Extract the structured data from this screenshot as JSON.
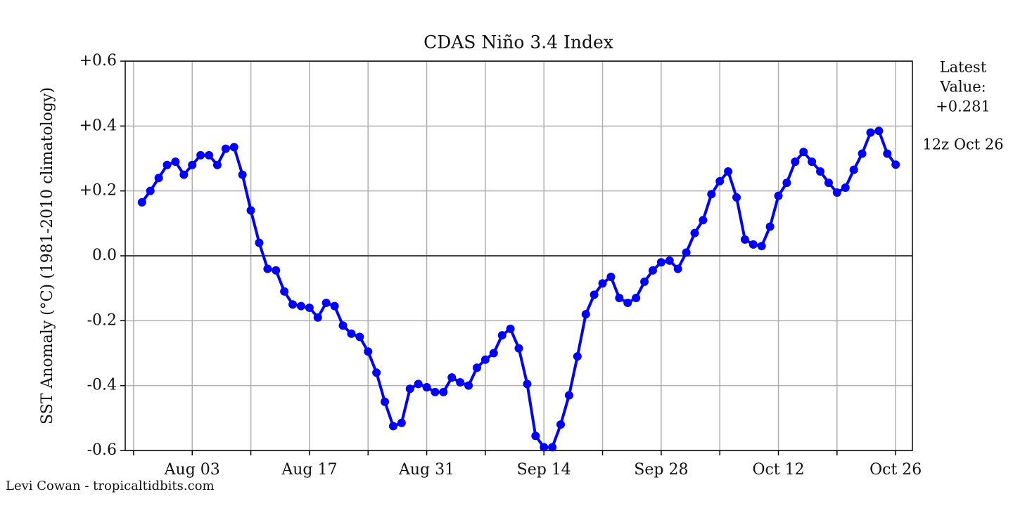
{
  "chart_data": {
    "type": "line",
    "title": "CDAS Niño 3.4 Index",
    "y_label": "SST Anomaly (°C) (1981-2010 climatology)",
    "side_note": [
      "Latest",
      "Value:",
      "+0.281"
    ],
    "side_time": "12z Oct 26",
    "credit": "Levi Cowan - tropicaltidbits.com",
    "x": [
      "Jul 28",
      "Jul 29",
      "Jul 30",
      "Jul 31",
      "Aug 01",
      "Aug 02",
      "Aug 03",
      "Aug 04",
      "Aug 05",
      "Aug 06",
      "Aug 07",
      "Aug 08",
      "Aug 09",
      "Aug 10",
      "Aug 11",
      "Aug 12",
      "Aug 13",
      "Aug 14",
      "Aug 15",
      "Aug 16",
      "Aug 17",
      "Aug 18",
      "Aug 19",
      "Aug 20",
      "Aug 21",
      "Aug 22",
      "Aug 23",
      "Aug 24",
      "Aug 25",
      "Aug 26",
      "Aug 27",
      "Aug 28",
      "Aug 29",
      "Aug 30",
      "Aug 31",
      "Sep 01",
      "Sep 02",
      "Sep 03",
      "Sep 04",
      "Sep 05",
      "Sep 06",
      "Sep 07",
      "Sep 08",
      "Sep 09",
      "Sep 10",
      "Sep 11",
      "Sep 12",
      "Sep 13",
      "Sep 14",
      "Sep 15",
      "Sep 16",
      "Sep 17",
      "Sep 18",
      "Sep 19",
      "Sep 20",
      "Sep 21",
      "Sep 22",
      "Sep 23",
      "Sep 24",
      "Sep 25",
      "Sep 26",
      "Sep 27",
      "Sep 28",
      "Sep 29",
      "Sep 30",
      "Oct 01",
      "Oct 02",
      "Oct 03",
      "Oct 04",
      "Oct 05",
      "Oct 06",
      "Oct 07",
      "Oct 08",
      "Oct 09",
      "Oct 10",
      "Oct 11",
      "Oct 12",
      "Oct 13",
      "Oct 14",
      "Oct 15",
      "Oct 16",
      "Oct 17",
      "Oct 18",
      "Oct 19",
      "Oct 20",
      "Oct 21",
      "Oct 22",
      "Oct 23",
      "Oct 24",
      "Oct 25",
      "Oct 26"
    ],
    "series": [
      {
        "name": "Niño 3.4",
        "color": "#0000ff",
        "values": [
          0.165,
          0.2,
          0.24,
          0.28,
          0.29,
          0.25,
          0.28,
          0.31,
          0.31,
          0.28,
          0.33,
          0.335,
          0.25,
          0.14,
          0.04,
          -0.04,
          -0.045,
          -0.11,
          -0.15,
          -0.155,
          -0.16,
          -0.19,
          -0.145,
          -0.155,
          -0.215,
          -0.24,
          -0.25,
          -0.295,
          -0.36,
          -0.45,
          -0.525,
          -0.515,
          -0.41,
          -0.395,
          -0.405,
          -0.42,
          -0.42,
          -0.375,
          -0.39,
          -0.4,
          -0.345,
          -0.32,
          -0.3,
          -0.245,
          -0.225,
          -0.285,
          -0.395,
          -0.555,
          -0.59,
          -0.59,
          -0.52,
          -0.43,
          -0.31,
          -0.18,
          -0.12,
          -0.085,
          -0.065,
          -0.13,
          -0.145,
          -0.13,
          -0.08,
          -0.045,
          -0.02,
          -0.015,
          -0.04,
          0.01,
          0.07,
          0.11,
          0.19,
          0.23,
          0.26,
          0.18,
          0.05,
          0.035,
          0.03,
          0.09,
          0.185,
          0.225,
          0.29,
          0.32,
          0.29,
          0.26,
          0.225,
          0.195,
          0.21,
          0.265,
          0.315,
          0.38,
          0.385,
          0.315,
          0.281
        ]
      }
    ],
    "xlim": [
      "Jul 26",
      "Oct 28"
    ],
    "xticks": [
      {
        "value": "Jul 27",
        "label": null
      },
      "Aug 03",
      {
        "value": "Aug 10",
        "label": null
      },
      "Aug 17",
      {
        "value": "Aug 24",
        "label": null
      },
      "Aug 31",
      {
        "value": "Sep 07",
        "label": null
      },
      "Sep 14",
      {
        "value": "Sep 21",
        "label": null
      },
      "Sep 28",
      {
        "value": "Oct 05",
        "label": null
      },
      "Oct 12",
      {
        "value": "Oct 19",
        "label": null
      },
      "Oct 26"
    ],
    "ylim": [
      -0.6,
      0.6
    ],
    "yticks": [
      {
        "value": -0.6,
        "label": "-0.6"
      },
      {
        "value": -0.4,
        "label": "-0.4"
      },
      {
        "value": -0.2,
        "label": "-0.2"
      },
      {
        "value": 0,
        "label": "0.0"
      },
      {
        "value": 0.2,
        "label": "+0.2"
      },
      {
        "value": 0.4,
        "label": "+0.4"
      },
      {
        "value": 0.6,
        "label": "+0.6"
      }
    ],
    "grid": true
  }
}
